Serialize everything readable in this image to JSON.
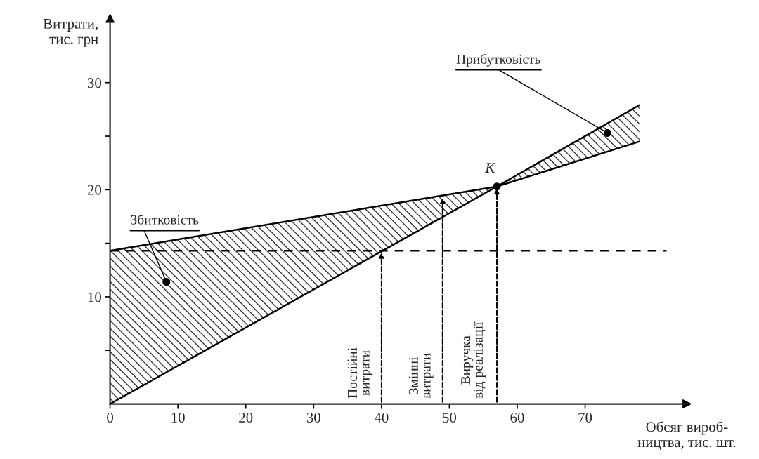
{
  "chart_data": {
    "type": "line",
    "xlabel": "Обсяг вироб-\nництва, тис. шт.",
    "ylabel": "Витрати,\nтис. грн",
    "xlim": [
      0,
      85
    ],
    "ylim": [
      0,
      36
    ],
    "xticks": [
      0,
      10,
      20,
      30,
      40,
      50,
      60,
      70
    ],
    "yticks": [
      {
        "value": 5,
        "label": null
      },
      10,
      {
        "value": 15,
        "label": null
      },
      20,
      {
        "value": 25,
        "label": null
      },
      30
    ],
    "series": [
      {
        "color": "#000000",
        "x": [
          0,
          57,
          78
        ],
        "values": [
          0,
          20.3,
          27.9
        ]
      },
      {
        "color": "#000000",
        "x": [
          0,
          57,
          78
        ],
        "values": [
          14.3,
          20.3,
          24.5
        ]
      },
      {
        "color": "#000000",
        "x": [
          0,
          82
        ],
        "values": [
          14.3,
          14.3
        ],
        "line_style": "dashed"
      }
    ],
    "annotations": [
      {
        "text": "Постійні\nвитрати",
        "x": 40,
        "y": 14.3
      },
      {
        "text": "Змінні\nвитрати",
        "x": 49,
        "y": 19.4
      },
      {
        "text": "Виручка\nвід реалізації",
        "x": 57,
        "y": 20.3
      },
      {
        "text": "K",
        "x": 57,
        "y": 20.3
      },
      {
        "text": "Збитковість",
        "x": 8.3,
        "y": 11.4
      },
      {
        "text": "Прибутковість",
        "x": 73.3,
        "y": 25.3
      }
    ],
    "grid": false,
    "legend": false,
    "marker": "none"
  }
}
